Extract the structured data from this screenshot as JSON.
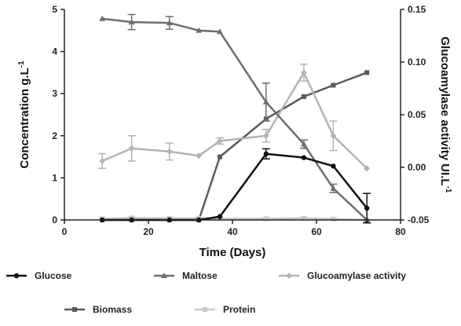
{
  "chart_data": {
    "type": "line",
    "xlabel": "Time (Days)",
    "ylabel_left": "Concentration g.L",
    "ylabel_left_sup": "-1",
    "ylabel_right": "Glucoamylase activity UI.L",
    "ylabel_right_sup": "-1",
    "xlim": [
      0,
      80
    ],
    "ylim_left": [
      0,
      5
    ],
    "ylim_right": [
      -0.05,
      0.15
    ],
    "x_ticks": [
      "0",
      "20",
      "40",
      "60",
      "80"
    ],
    "y_left_ticks": [
      "0",
      "1",
      "2",
      "3",
      "4",
      "5"
    ],
    "y_right_ticks": [
      "-0.05",
      "0.00",
      "0.05",
      "0.10",
      "0.15"
    ],
    "grid": false,
    "legend_position": "bottom",
    "series": [
      {
        "name": "Glucose",
        "axis": "left",
        "marker": "circle",
        "color": "#111111",
        "x": [
          9,
          16,
          25,
          32,
          37,
          48,
          57,
          64,
          72
        ],
        "y": [
          0,
          0,
          0,
          0,
          0.08,
          1.57,
          1.48,
          1.28,
          0.28
        ],
        "err": [
          0,
          0,
          0,
          0,
          0,
          0.12,
          0,
          0,
          0.35
        ]
      },
      {
        "name": "Maltose",
        "axis": "left",
        "marker": "triangle",
        "color": "#6e6e6e",
        "x": [
          9,
          16,
          25,
          32,
          37,
          48,
          57,
          64,
          72
        ],
        "y": [
          4.78,
          4.7,
          4.68,
          4.5,
          4.47,
          2.8,
          1.8,
          0.75,
          0
        ],
        "err": [
          0,
          0.18,
          0.15,
          0,
          0,
          0.45,
          0.1,
          0.1,
          0
        ]
      },
      {
        "name": "Glucoamylase activity",
        "axis": "right",
        "marker": "diamond",
        "color": "#b4b4b4",
        "x": [
          9,
          16,
          25,
          32,
          37,
          48,
          57,
          64,
          72
        ],
        "y": [
          0.006,
          0.018,
          0.015,
          0.011,
          0.025,
          0.03,
          0.09,
          0.03,
          -0.001
        ],
        "err": [
          0.007,
          0.012,
          0.008,
          0,
          0.003,
          0.006,
          0.008,
          0.014,
          0
        ]
      },
      {
        "name": "Biomass",
        "axis": "left",
        "marker": "square",
        "color": "#5a5a5a",
        "x": [
          9,
          16,
          25,
          32,
          37,
          48,
          57,
          64,
          72
        ],
        "y": [
          0,
          0,
          0,
          0,
          1.5,
          2.4,
          2.93,
          3.2,
          3.5
        ],
        "err": [
          0,
          0,
          0,
          0,
          0,
          0,
          0,
          0,
          0
        ]
      },
      {
        "name": "Protein",
        "axis": "left",
        "marker": "square",
        "color": "#c8c8c8",
        "x": [
          9,
          16,
          25,
          32,
          37,
          48,
          57,
          64,
          72
        ],
        "y": [
          0.03,
          0.05,
          0.04,
          0.04,
          0.03,
          0.03,
          0.04,
          0.02,
          0
        ],
        "err": [
          0.02,
          0.02,
          0.02,
          0.02,
          0.02,
          0.02,
          0.02,
          0.02,
          0
        ]
      }
    ]
  }
}
